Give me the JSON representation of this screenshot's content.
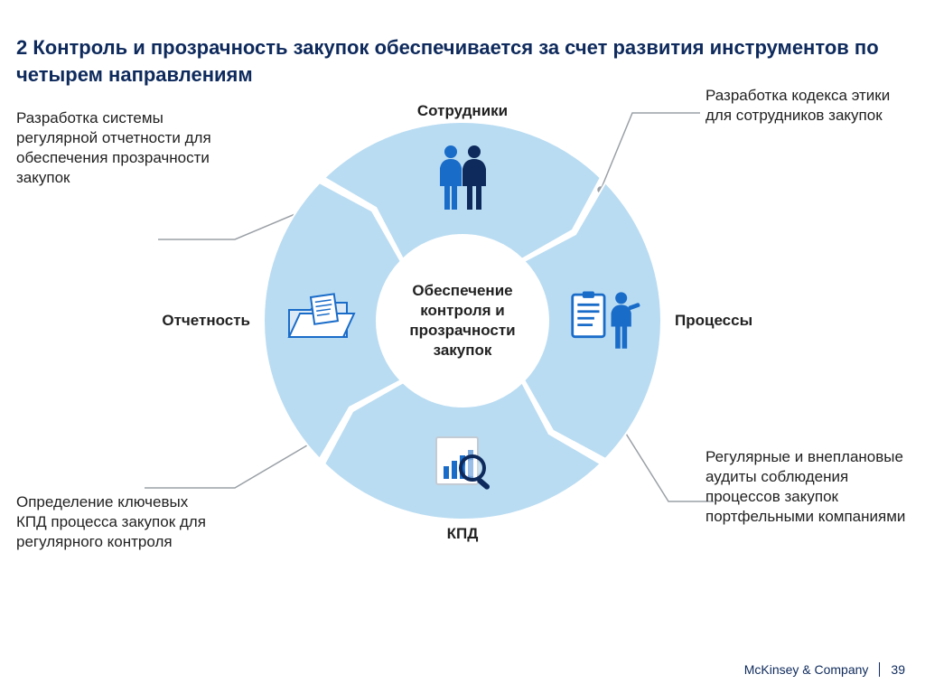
{
  "title": "2 Контроль и прозрачность закупок обеспечивается  за счет развития инструментов по четырем направлениям",
  "center_text": "Обеспечение контроля и прозрачности закупок",
  "segments": {
    "top": {
      "label": "Сотрудники"
    },
    "right": {
      "label": "Процессы"
    },
    "bottom": {
      "label": "КПД"
    },
    "left": {
      "label": "Отчетность"
    }
  },
  "callouts": {
    "top_left": "Разработка системы регулярной отчетности для обеспечения прозрачности закупок",
    "top_right": "Разработка кодекса этики для сотрудников закупок",
    "bottom_right": "Регулярные и внеплановые аудиты соблюдения процессов закупок портфельными компаниями",
    "bottom_left": "Определение ключевых КПД процесса закупок для регулярного контроля"
  },
  "colors": {
    "ring_fill": "#b9dcf2",
    "ring_stroke": "#ffffff",
    "arrow_notch": "#ffffff",
    "icon_primary": "#1a6cc9",
    "icon_dark": "#0e2a5c",
    "leader": "#9aa0a6",
    "title": "#0e2a5c",
    "text": "#222222",
    "background": "#ffffff"
  },
  "ring": {
    "outer_r": 220,
    "inner_r": 95,
    "gap_deg": 2,
    "notch_depth": 18
  },
  "footer": {
    "company": "McKinsey & Company",
    "page": "39"
  }
}
